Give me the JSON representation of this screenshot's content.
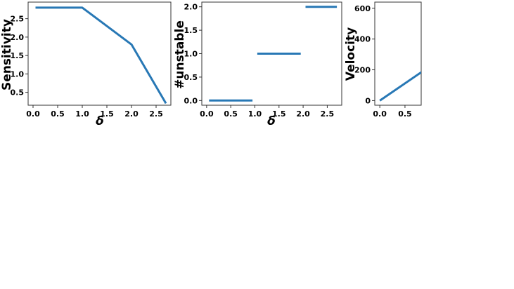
{
  "chart_data": [
    {
      "type": "line",
      "xlabel": "δ",
      "ylabel": "Sensitivity",
      "xlim": [
        -0.1,
        2.8
      ],
      "ylim": [
        0.15,
        2.95
      ],
      "xticks": [
        0.0,
        0.5,
        1.0,
        1.5,
        2.0,
        2.5
      ],
      "xtick_labels": [
        "0.0",
        "0.5",
        "1.0",
        "1.5",
        "2.0",
        "2.5"
      ],
      "yticks": [
        0.5,
        1.0,
        1.5,
        2.0,
        2.5
      ],
      "ytick_labels": [
        "0.5",
        "1.0",
        "1.5",
        "2.0",
        "2.5"
      ],
      "grid": false,
      "series_color": "#2878b5",
      "series": [
        {
          "segments": [
            {
              "x": [
                0.05,
                1.0,
                2.0,
                2.7
              ],
              "y": [
                2.8,
                2.8,
                1.8,
                0.2
              ]
            }
          ]
        }
      ]
    },
    {
      "type": "line",
      "xlabel": "δ",
      "ylabel": "#unstable",
      "xlim": [
        -0.1,
        2.8
      ],
      "ylim": [
        -0.1,
        2.1
      ],
      "xticks": [
        0.0,
        0.5,
        1.0,
        1.5,
        2.0,
        2.5
      ],
      "xtick_labels": [
        "0.0",
        "0.5",
        "1.0",
        "1.5",
        "2.0",
        "2.5"
      ],
      "yticks": [
        0.0,
        0.5,
        1.0,
        1.5,
        2.0
      ],
      "ytick_labels": [
        "0.0",
        "0.5",
        "1.0",
        "1.5",
        "2.0"
      ],
      "grid": false,
      "series_color": "#2878b5",
      "series": [
        {
          "segments": [
            {
              "x": [
                0.05,
                0.95
              ],
              "y": [
                0.0,
                0.0
              ]
            },
            {
              "x": [
                1.05,
                1.95
              ],
              "y": [
                1.0,
                1.0
              ]
            },
            {
              "x": [
                2.05,
                2.7
              ],
              "y": [
                2.0,
                2.0
              ]
            }
          ]
        }
      ]
    },
    {
      "type": "line",
      "xlabel": "",
      "ylabel": "Velocity",
      "xlim": [
        -0.1,
        0.85
      ],
      "ylim": [
        -30,
        640
      ],
      "xticks": [
        0.0,
        0.5
      ],
      "xtick_labels": [
        "0.0",
        "0.5"
      ],
      "yticks": [
        0,
        200,
        400,
        600
      ],
      "ytick_labels": [
        "0",
        "200",
        "400",
        "600"
      ],
      "grid": false,
      "series_color": "#2878b5",
      "series": [
        {
          "segments": [
            {
              "x": [
                0.0,
                0.85
              ],
              "y": [
                0,
                190
              ]
            }
          ]
        }
      ]
    }
  ]
}
